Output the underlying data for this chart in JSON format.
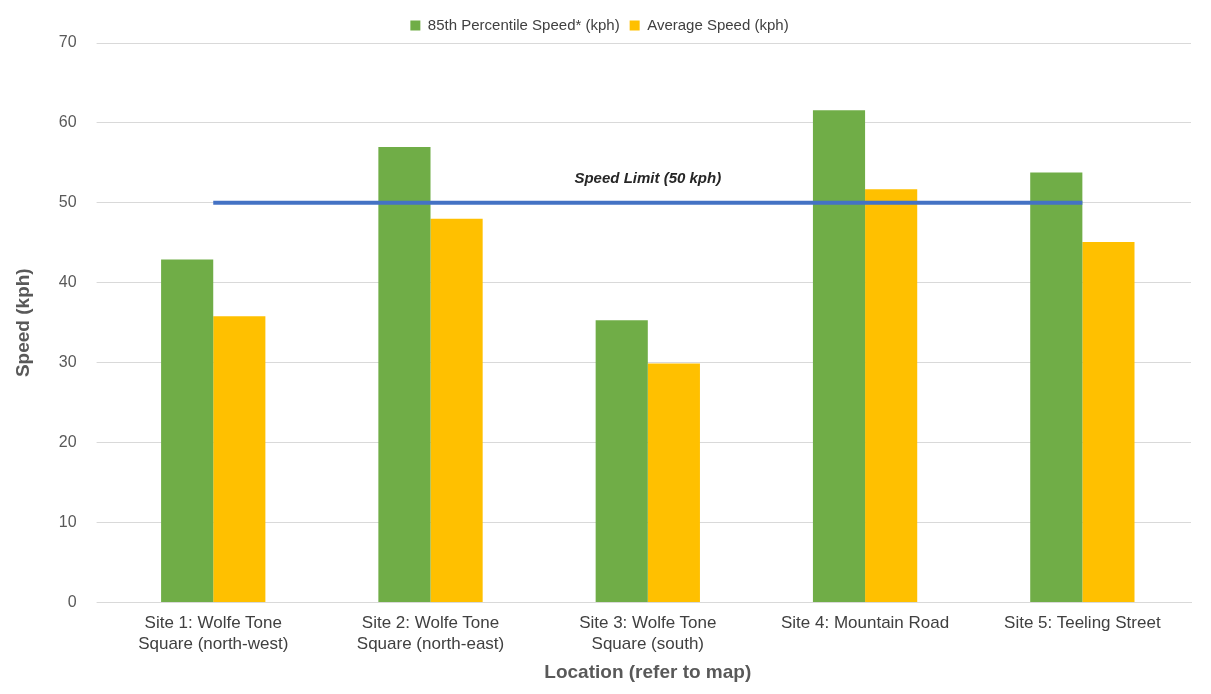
{
  "chart_data": {
    "type": "bar",
    "xlabel": "Location (refer to map)",
    "ylabel": "Speed (kph)",
    "categories": [
      "Site 1: Wolfe Tone Square (north-west)",
      "Site 2: Wolfe Tone Square (north-east)",
      "Site 3: Wolfe Tone Square (south)",
      "Site 4: Mountain Road",
      "Site 5: Teeling Street"
    ],
    "series": [
      {
        "name": "85th Percentile Speed* (kph)",
        "color": "#70ad47",
        "values": [
          42.9,
          57.0,
          35.3,
          61.6,
          53.8
        ]
      },
      {
        "name": "Average Speed (kph)",
        "color": "#ffc000",
        "values": [
          35.8,
          48.0,
          29.9,
          51.7,
          45.1
        ]
      }
    ],
    "ylim": [
      0,
      70
    ],
    "yticks": [
      0,
      10,
      20,
      30,
      40,
      50,
      60,
      70
    ],
    "grid": "y",
    "legend": "top",
    "ref_lines": [
      {
        "axis": "y",
        "value": 50,
        "label": "Speed Limit (50 kph)",
        "color": "#4472c4"
      }
    ]
  }
}
